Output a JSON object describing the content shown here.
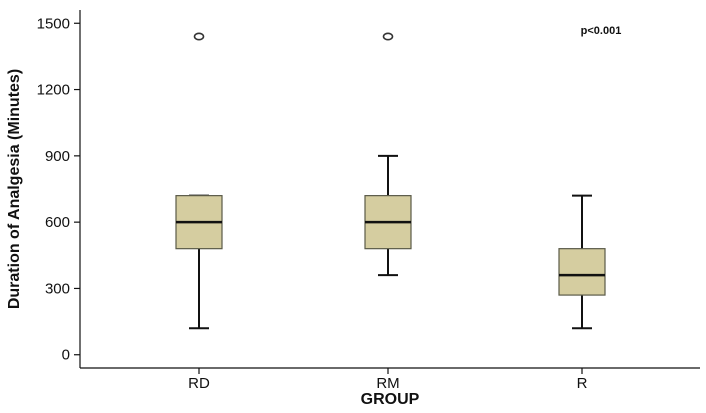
{
  "chart_data": {
    "type": "box",
    "xlabel": "GROUP",
    "ylabel": "Duration of Analgesia (Minutes)",
    "ylim": [
      -60,
      1560
    ],
    "yticks": [
      0,
      300,
      600,
      900,
      1200,
      1500
    ],
    "categories": [
      "RD",
      "RM",
      "R"
    ],
    "boxes": [
      {
        "name": "RD",
        "whisker_low": 120,
        "q1": 480,
        "median": 600,
        "q3": 720,
        "whisker_high": 720,
        "outliers": [
          1440
        ]
      },
      {
        "name": "RM",
        "whisker_low": 360,
        "q1": 480,
        "median": 600,
        "q3": 720,
        "whisker_high": 900,
        "outliers": [
          1440
        ]
      },
      {
        "name": "R",
        "whisker_low": 120,
        "q1": 270,
        "median": 360,
        "q3": 480,
        "whisker_high": 720,
        "outliers": []
      }
    ],
    "annotation": "p<0.001",
    "grid": false,
    "colors": {
      "box_fill": "#d5cda0",
      "box_stroke": "#5a5a48",
      "line": "#111111"
    }
  }
}
